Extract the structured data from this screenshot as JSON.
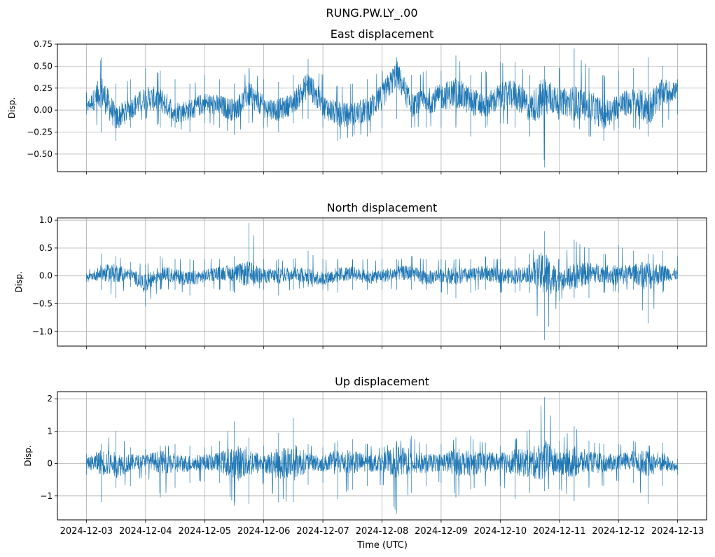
{
  "suptitle": "RUNG.PW.LY_.00",
  "xlabel": "Time (UTC)",
  "chart_data": [
    {
      "type": "line",
      "title": "East displacement",
      "ylabel": "Disp.",
      "xlim": [
        "2024-12-02T12:14",
        "2024-12-13T11:46"
      ],
      "ylim": [
        -0.7,
        0.75
      ],
      "yticks": [
        "0.75",
        "0.50",
        "0.25",
        "0.00",
        "−0.25",
        "−0.50"
      ],
      "ytick_values": [
        0.75,
        0.5,
        0.25,
        0.0,
        -0.25,
        -0.5
      ],
      "xticks": [
        "2024-12-03",
        "2024-12-04",
        "2024-12-05",
        "2024-12-06",
        "2024-12-07",
        "2024-12-08",
        "2024-12-09",
        "2024-12-10",
        "2024-12-11",
        "2024-12-12",
        "2024-12-13"
      ],
      "xtick_labels_visible": false,
      "grid": true,
      "color": "#1f77b4",
      "series": [
        {
          "x": [
            "2024-12-03T00:00",
            "2024-12-03T06:00",
            "2024-12-03T12:00",
            "2024-12-03T18:00",
            "2024-12-04T00:00",
            "2024-12-04T06:00",
            "2024-12-04T12:00",
            "2024-12-04T18:00",
            "2024-12-05T00:00",
            "2024-12-05T06:00",
            "2024-12-05T12:00",
            "2024-12-05T18:00",
            "2024-12-06T00:00",
            "2024-12-06T06:00",
            "2024-12-06T12:00",
            "2024-12-06T18:00",
            "2024-12-07T00:00",
            "2024-12-07T06:00",
            "2024-12-07T12:00",
            "2024-12-07T18:00",
            "2024-12-08T00:00",
            "2024-12-08T06:00",
            "2024-12-08T12:00",
            "2024-12-08T18:00",
            "2024-12-09T00:00",
            "2024-12-09T06:00",
            "2024-12-09T12:00",
            "2024-12-09T18:00",
            "2024-12-10T00:00",
            "2024-12-10T06:00",
            "2024-12-10T12:00",
            "2024-12-10T18:00",
            "2024-12-11T00:00",
            "2024-12-11T06:00",
            "2024-12-11T12:00",
            "2024-12-11T18:00",
            "2024-12-12T00:00",
            "2024-12-12T06:00",
            "2024-12-12T12:00",
            "2024-12-12T18:00",
            "2024-12-13T00:00"
          ],
          "y": [
            0.02,
            0.22,
            -0.1,
            0.02,
            0.14,
            0.12,
            -0.02,
            0.0,
            0.08,
            0.05,
            0.0,
            0.18,
            0.04,
            0.0,
            0.08,
            0.3,
            0.05,
            -0.05,
            -0.05,
            0.0,
            0.15,
            0.42,
            0.05,
            0.1,
            0.15,
            0.2,
            0.1,
            0.05,
            0.15,
            0.18,
            0.02,
            0.15,
            0.1,
            0.08,
            0.05,
            -0.05,
            0.05,
            0.1,
            0.02,
            0.2,
            0.22
          ],
          "range_min": [
            -0.05,
            -0.25,
            -0.35,
            -0.2,
            -0.1,
            -0.2,
            -0.2,
            -0.25,
            -0.15,
            -0.2,
            -0.28,
            -0.15,
            -0.2,
            -0.25,
            -0.15,
            -0.1,
            -0.2,
            -0.35,
            -0.3,
            -0.3,
            -0.2,
            -0.1,
            -0.2,
            -0.2,
            -0.2,
            -0.2,
            -0.3,
            -0.2,
            -0.15,
            -0.2,
            -0.3,
            -0.65,
            -0.1,
            -0.2,
            -0.3,
            -0.35,
            -0.2,
            -0.2,
            -0.3,
            -0.2,
            -0.05
          ],
          "range_max": [
            0.2,
            0.6,
            0.3,
            0.35,
            0.48,
            0.45,
            0.35,
            0.3,
            0.4,
            0.35,
            0.3,
            0.48,
            0.35,
            0.32,
            0.4,
            0.58,
            0.4,
            0.28,
            0.3,
            0.35,
            0.45,
            0.6,
            0.4,
            0.45,
            0.45,
            0.62,
            0.4,
            0.45,
            0.55,
            0.55,
            0.4,
            0.5,
            0.48,
            0.7,
            0.48,
            0.4,
            0.45,
            0.48,
            0.6,
            0.5,
            0.35
          ]
        }
      ]
    },
    {
      "type": "line",
      "title": "North displacement",
      "ylabel": "Disp.",
      "xlim": [
        "2024-12-02T12:14",
        "2024-12-13T11:46"
      ],
      "ylim": [
        -1.26,
        1.04
      ],
      "yticks": [
        "1.0",
        "0.5",
        "0.0",
        "−0.5",
        "−1.0"
      ],
      "ytick_values": [
        1.0,
        0.5,
        0.0,
        -0.5,
        -1.0
      ],
      "xticks": [
        "2024-12-03",
        "2024-12-04",
        "2024-12-05",
        "2024-12-06",
        "2024-12-07",
        "2024-12-08",
        "2024-12-09",
        "2024-12-10",
        "2024-12-11",
        "2024-12-12",
        "2024-12-13"
      ],
      "xtick_labels_visible": false,
      "grid": true,
      "color": "#1f77b4",
      "series": [
        {
          "x": [
            "2024-12-03T00:00",
            "2024-12-03T06:00",
            "2024-12-03T12:00",
            "2024-12-03T18:00",
            "2024-12-04T00:00",
            "2024-12-04T06:00",
            "2024-12-04T12:00",
            "2024-12-04T18:00",
            "2024-12-05T00:00",
            "2024-12-05T06:00",
            "2024-12-05T12:00",
            "2024-12-05T18:00",
            "2024-12-06T00:00",
            "2024-12-06T06:00",
            "2024-12-06T12:00",
            "2024-12-06T18:00",
            "2024-12-07T00:00",
            "2024-12-07T06:00",
            "2024-12-07T12:00",
            "2024-12-07T18:00",
            "2024-12-08T00:00",
            "2024-12-08T06:00",
            "2024-12-08T12:00",
            "2024-12-08T18:00",
            "2024-12-09T00:00",
            "2024-12-09T06:00",
            "2024-12-09T12:00",
            "2024-12-09T18:00",
            "2024-12-10T00:00",
            "2024-12-10T06:00",
            "2024-12-10T12:00",
            "2024-12-10T18:00",
            "2024-12-11T00:00",
            "2024-12-11T06:00",
            "2024-12-11T12:00",
            "2024-12-11T18:00",
            "2024-12-12T00:00",
            "2024-12-12T06:00",
            "2024-12-12T12:00",
            "2024-12-12T18:00",
            "2024-12-13T00:00"
          ],
          "y": [
            -0.03,
            0.05,
            0.05,
            0.02,
            -0.15,
            0.05,
            0.0,
            -0.05,
            0.0,
            0.05,
            0.05,
            0.02,
            0.0,
            0.0,
            0.05,
            0.0,
            -0.05,
            0.02,
            0.05,
            -0.02,
            0.0,
            0.05,
            0.05,
            -0.05,
            0.02,
            0.0,
            0.0,
            0.05,
            0.0,
            0.0,
            0.05,
            0.05,
            -0.1,
            0.0,
            0.05,
            0.05,
            0.0,
            0.05,
            0.0,
            0.05,
            0.02
          ],
          "range_min": [
            -0.1,
            -0.25,
            -0.4,
            -0.2,
            -0.55,
            -0.25,
            -0.25,
            -0.35,
            -0.2,
            -0.25,
            -0.3,
            -0.15,
            -0.25,
            -0.35,
            -0.25,
            -0.2,
            -0.25,
            -0.3,
            -0.25,
            -0.25,
            -0.25,
            -0.25,
            -0.25,
            -0.25,
            -0.3,
            -0.4,
            -0.3,
            -0.25,
            -0.3,
            -0.3,
            -0.3,
            -1.15,
            -0.45,
            -0.4,
            -0.4,
            -0.3,
            -0.3,
            -0.25,
            -0.85,
            -0.3,
            -0.05
          ],
          "range_max": [
            0.05,
            0.4,
            0.35,
            0.25,
            0.2,
            0.35,
            0.3,
            0.3,
            0.3,
            0.3,
            0.35,
            0.95,
            0.3,
            0.3,
            0.3,
            0.45,
            0.3,
            0.3,
            0.3,
            0.3,
            0.3,
            0.3,
            0.35,
            0.3,
            0.3,
            0.3,
            0.3,
            0.35,
            0.3,
            0.35,
            0.4,
            0.8,
            0.3,
            0.65,
            0.5,
            0.4,
            0.55,
            0.45,
            0.4,
            0.45,
            0.35
          ]
        }
      ]
    },
    {
      "type": "line",
      "title": "Up displacement",
      "ylabel": "Disp.",
      "xlim": [
        "2024-12-02T12:14",
        "2024-12-13T11:46"
      ],
      "ylim": [
        -1.74,
        2.22
      ],
      "yticks": [
        "2",
        "1",
        "0",
        "−1"
      ],
      "ytick_values": [
        2,
        1,
        0,
        -1
      ],
      "xticks": [
        "2024-12-03",
        "2024-12-04",
        "2024-12-05",
        "2024-12-06",
        "2024-12-07",
        "2024-12-08",
        "2024-12-09",
        "2024-12-10",
        "2024-12-11",
        "2024-12-12",
        "2024-12-13"
      ],
      "xtick_labels_visible": true,
      "grid": true,
      "color": "#1f77b4",
      "series": [
        {
          "x": [
            "2024-12-03T00:00",
            "2024-12-03T06:00",
            "2024-12-03T12:00",
            "2024-12-03T18:00",
            "2024-12-04T00:00",
            "2024-12-04T06:00",
            "2024-12-04T12:00",
            "2024-12-04T18:00",
            "2024-12-05T00:00",
            "2024-12-05T06:00",
            "2024-12-05T12:00",
            "2024-12-05T18:00",
            "2024-12-06T00:00",
            "2024-12-06T06:00",
            "2024-12-06T12:00",
            "2024-12-06T18:00",
            "2024-12-07T00:00",
            "2024-12-07T06:00",
            "2024-12-07T12:00",
            "2024-12-07T18:00",
            "2024-12-08T00:00",
            "2024-12-08T06:00",
            "2024-12-08T12:00",
            "2024-12-08T18:00",
            "2024-12-09T00:00",
            "2024-12-09T06:00",
            "2024-12-09T12:00",
            "2024-12-09T18:00",
            "2024-12-10T00:00",
            "2024-12-10T06:00",
            "2024-12-10T12:00",
            "2024-12-10T18:00",
            "2024-12-11T00:00",
            "2024-12-11T06:00",
            "2024-12-11T12:00",
            "2024-12-11T18:00",
            "2024-12-12T00:00",
            "2024-12-12T06:00",
            "2024-12-12T12:00",
            "2024-12-12T18:00",
            "2024-12-13T00:00"
          ],
          "y": [
            0.0,
            0.05,
            -0.05,
            0.02,
            0.1,
            0.05,
            0.0,
            0.0,
            0.05,
            0.05,
            0.0,
            0.05,
            0.0,
            0.0,
            0.05,
            0.05,
            0.0,
            0.05,
            0.05,
            0.0,
            0.05,
            0.05,
            0.05,
            0.0,
            0.05,
            0.05,
            0.0,
            0.05,
            0.05,
            0.05,
            0.0,
            0.1,
            0.0,
            0.05,
            0.05,
            0.0,
            0.05,
            0.1,
            0.0,
            0.05,
            -0.15
          ],
          "range_min": [
            -0.35,
            -1.2,
            -0.75,
            -0.7,
            -0.35,
            -1.05,
            -0.75,
            -0.6,
            -0.55,
            -0.6,
            -1.3,
            -1.25,
            -0.6,
            -1.2,
            -1.2,
            -0.65,
            -0.6,
            -1.1,
            -0.8,
            -0.7,
            -0.65,
            -1.55,
            -0.9,
            -0.7,
            -0.6,
            -1.05,
            -0.8,
            -0.7,
            -0.7,
            -1.1,
            -0.9,
            -0.85,
            -0.8,
            -1.15,
            -0.75,
            -0.7,
            -0.55,
            -0.6,
            -1.25,
            -0.7,
            -0.35
          ],
          "range_max": [
            0.3,
            0.6,
            1.0,
            0.5,
            0.45,
            0.55,
            0.6,
            0.55,
            0.5,
            0.7,
            1.3,
            0.8,
            0.55,
            0.95,
            1.4,
            0.6,
            0.5,
            0.7,
            0.75,
            0.6,
            0.5,
            0.7,
            0.85,
            0.6,
            0.6,
            0.8,
            0.85,
            0.65,
            0.55,
            0.75,
            1.05,
            2.05,
            0.7,
            1.15,
            0.7,
            0.6,
            0.6,
            0.7,
            0.55,
            0.65,
            0.15
          ]
        }
      ]
    }
  ]
}
